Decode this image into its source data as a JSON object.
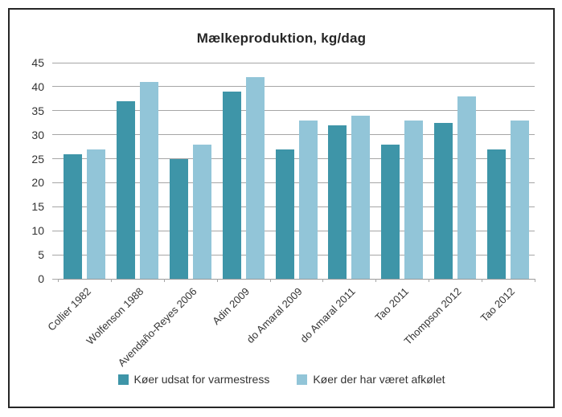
{
  "title": "Mælkeproduktion, kg/dag",
  "chart_data": {
    "type": "bar",
    "title": "Mælkeproduktion, kg/dag",
    "categories": [
      "Collier 1982",
      "Wolfenson 1988",
      "Avendaño-Reyes 2006",
      "Adin 2009",
      "do Amaral 2009",
      "do Amaral 2011",
      "Tao 2011",
      "Thompson 2012",
      "Tao 2012"
    ],
    "series": [
      {
        "name": "Køer udsat for varmestress",
        "color": "#3E95A8",
        "values": [
          26,
          37,
          25,
          39,
          27,
          32,
          28,
          32.5,
          27
        ]
      },
      {
        "name": "Køer der har været afkølet",
        "color": "#92C5D8",
        "values": [
          27,
          41,
          28,
          42,
          33,
          34,
          33,
          38,
          33
        ]
      }
    ],
    "xlabel": "",
    "ylabel": "",
    "ylim": [
      0,
      45
    ],
    "ytick_step": 5,
    "y_tick_labels": [
      "45",
      "40",
      "35",
      "30",
      "25",
      "20",
      "15",
      "10",
      "5",
      "0"
    ],
    "grid": "horizontal",
    "legend_position": "bottom",
    "colors": {
      "gridline": "#A6A6A6",
      "axis_text": "#333333",
      "title_text": "#262626",
      "frame_border": "#262626",
      "background": "#FFFFFF"
    }
  }
}
